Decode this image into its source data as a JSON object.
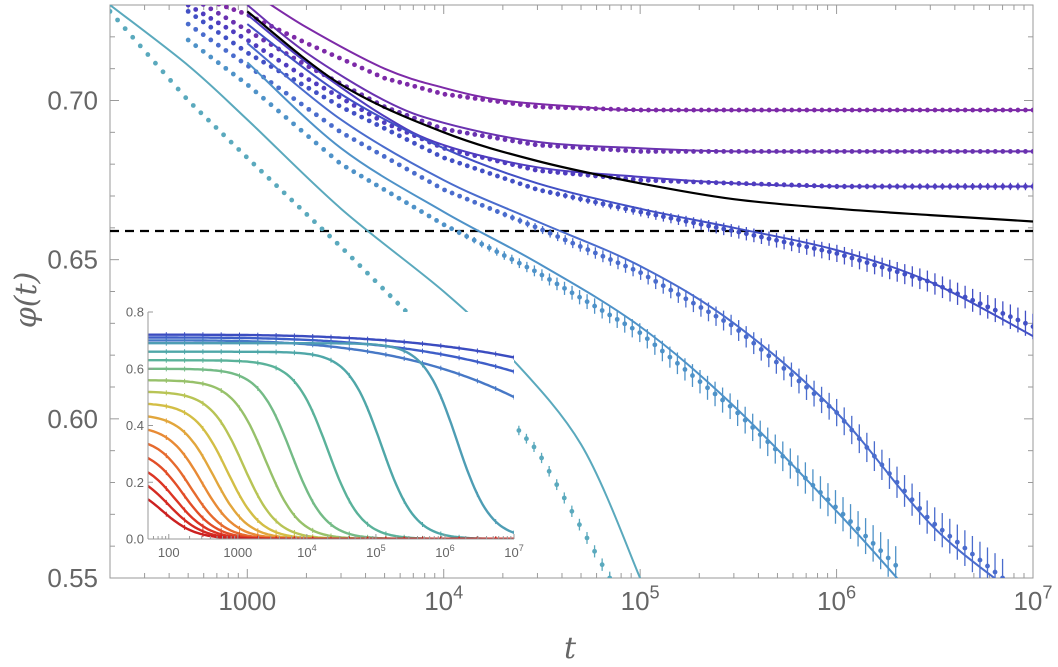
{
  "chart_data": {
    "main": {
      "type": "line",
      "xlabel": "t",
      "ylabel": "φ(t)",
      "x_scale": "log",
      "xlim": [
        200,
        10000000
      ],
      "ylim": [
        0.55,
        0.73
      ],
      "xticks": [
        {
          "value": 1000,
          "base": "1000",
          "exp": ""
        },
        {
          "value": 10000,
          "base": "10",
          "exp": "4"
        },
        {
          "value": 100000,
          "base": "10",
          "exp": "5"
        },
        {
          "value": 1000000,
          "base": "10",
          "exp": "6"
        },
        {
          "value": 10000000,
          "base": "10",
          "exp": "7"
        }
      ],
      "yticks": [
        {
          "value": 0.55,
          "label": "0.55"
        },
        {
          "value": 0.6,
          "label": "0.60"
        },
        {
          "value": 0.65,
          "label": "0.65"
        },
        {
          "value": 0.7,
          "label": "0.70"
        }
      ],
      "reference_line": {
        "y": 0.659,
        "style": "dashed",
        "color": "#000000"
      },
      "black_curve": {
        "color": "#000000",
        "x": [
          1000,
          3000,
          10000,
          30000,
          100000,
          300000,
          1000000,
          3000000,
          10000000
        ],
        "y": [
          0.728,
          0.705,
          0.69,
          0.681,
          0.674,
          0.669,
          0.666,
          0.664,
          0.662
        ]
      },
      "series": [
        {
          "name": "s1",
          "color": "#7d2aa8",
          "line": {
            "x": [
              1000,
              2000,
              5000,
              10000,
              20000,
              50000,
              100000,
              1000000,
              10000000
            ],
            "y": [
              0.735,
              0.723,
              0.71,
              0.704,
              0.7,
              0.698,
              0.697,
              0.697,
              0.697
            ]
          },
          "points": {
            "x": [
              600,
              1000,
              2000,
              5000,
              10000,
              30000,
              100000,
              1000000,
              10000000
            ],
            "y": [
              0.732,
              0.727,
              0.718,
              0.707,
              0.702,
              0.698,
              0.697,
              0.697,
              0.697
            ],
            "err": 0.0004
          }
        },
        {
          "name": "s2",
          "color": "#6a32b0",
          "line": {
            "x": [
              1000,
              2000,
              5000,
              10000,
              30000,
              100000,
              300000,
              1000000,
              10000000
            ],
            "y": [
              0.73,
              0.715,
              0.7,
              0.693,
              0.687,
              0.685,
              0.684,
              0.684,
              0.684
            ]
          },
          "points": {
            "x": [
              500,
              1000,
              2000,
              5000,
              10000,
              30000,
              100000,
              1000000,
              10000000
            ],
            "y": [
              0.733,
              0.722,
              0.711,
              0.698,
              0.691,
              0.686,
              0.684,
              0.684,
              0.684
            ],
            "err": 0.0006
          }
        },
        {
          "name": "s3",
          "color": "#4f3cbf",
          "line": {
            "x": [
              1000,
              2000,
              5000,
              10000,
              30000,
              100000,
              300000,
              1000000,
              10000000
            ],
            "y": [
              0.727,
              0.712,
              0.695,
              0.686,
              0.679,
              0.676,
              0.674,
              0.673,
              0.673
            ]
          },
          "points": {
            "x": [
              500,
              1000,
              2000,
              5000,
              10000,
              30000,
              100000,
              300000,
              1000000,
              10000000
            ],
            "y": [
              0.73,
              0.719,
              0.707,
              0.693,
              0.685,
              0.678,
              0.675,
              0.674,
              0.673,
              0.673
            ],
            "err": 0.0012
          }
        },
        {
          "name": "s4",
          "color": "#4250c5",
          "line": {
            "x": [
              1000,
              3000,
              10000,
              30000,
              100000,
              300000,
              1000000,
              3000000,
              10000000
            ],
            "y": [
              0.724,
              0.702,
              0.685,
              0.674,
              0.666,
              0.66,
              0.653,
              0.643,
              0.626
            ]
          },
          "points": {
            "x": [
              500,
              1000,
              3000,
              10000,
              30000,
              100000,
              300000,
              1000000,
              3000000,
              10000000
            ],
            "y": [
              0.728,
              0.715,
              0.698,
              0.682,
              0.672,
              0.665,
              0.659,
              0.652,
              0.643,
              0.629
            ],
            "err": 0.004
          }
        },
        {
          "name": "s5",
          "color": "#4a6ccd",
          "line": {
            "x": [
              1000,
              3000,
              10000,
              30000,
              100000,
              300000,
              1000000,
              3000000,
              7000000
            ],
            "y": [
              0.718,
              0.694,
              0.675,
              0.662,
              0.648,
              0.63,
              0.602,
              0.567,
              0.548
            ]
          },
          "points": {
            "x": [
              500,
              1000,
              3000,
              10000,
              30000,
              100000,
              300000,
              1000000,
              3000000,
              7000000
            ],
            "y": [
              0.724,
              0.711,
              0.69,
              0.672,
              0.66,
              0.646,
              0.629,
              0.602,
              0.568,
              0.55
            ],
            "err": 0.006
          }
        },
        {
          "name": "s6",
          "color": "#4e92c8",
          "line": {
            "x": [
              1000,
              3000,
              10000,
              30000,
              100000,
              300000,
              1000000,
              2100000
            ],
            "y": [
              0.712,
              0.685,
              0.665,
              0.649,
              0.629,
              0.604,
              0.571,
              0.549
            ]
          },
          "points": {
            "x": [
              500,
              1000,
              3000,
              10000,
              30000,
              100000,
              300000,
              1000000,
              2000000
            ],
            "y": [
              0.719,
              0.705,
              0.68,
              0.661,
              0.646,
              0.627,
              0.603,
              0.572,
              0.554
            ],
            "err": 0.006
          }
        },
        {
          "name": "s7",
          "color": "#5aa9bd",
          "line": {
            "x": [
              200,
              500,
              1000,
              3000,
              10000,
              20000,
              50000,
              100000
            ],
            "y": [
              0.73,
              0.711,
              0.694,
              0.666,
              0.64,
              0.622,
              0.592,
              0.55
            ]
          },
          "points": {
            "x": [
              200,
              500,
              1000,
              3000,
              10000,
              30000,
              70000
            ],
            "y": [
              0.728,
              0.7,
              0.682,
              0.654,
              0.622,
              0.59,
              0.55
            ],
            "err": 0.002
          }
        }
      ]
    },
    "inset": {
      "type": "line",
      "x_scale": "log",
      "xlim": [
        50,
        10000000
      ],
      "ylim": [
        0,
        0.8
      ],
      "xticks": [
        {
          "value": 100,
          "base": "100",
          "exp": ""
        },
        {
          "value": 1000,
          "base": "1000",
          "exp": ""
        },
        {
          "value": 10000,
          "base": "10",
          "exp": "4"
        },
        {
          "value": 100000,
          "base": "10",
          "exp": "5"
        },
        {
          "value": 1000000,
          "base": "10",
          "exp": "6"
        },
        {
          "value": 10000000,
          "base": "10",
          "exp": "7"
        }
      ],
      "yticks": [
        {
          "value": 0.0,
          "label": "0.0"
        },
        {
          "value": 0.2,
          "label": "0.2"
        },
        {
          "value": 0.4,
          "label": "0.4"
        },
        {
          "value": 0.6,
          "label": "0.6"
        },
        {
          "value": 0.8,
          "label": "0.8"
        }
      ],
      "series": [
        {
          "name": "i1",
          "color": "#3b4cc0",
          "y0": 0.72,
          "t_half": null,
          "y_end": 0.64
        },
        {
          "name": "i2",
          "color": "#3e5ec8",
          "y0": 0.71,
          "t_half": null,
          "y_end": 0.59
        },
        {
          "name": "i3",
          "color": "#4778c6",
          "y0": 0.7,
          "t_half": null,
          "y_end": 0.5
        },
        {
          "name": "i4",
          "color": "#4e9db4",
          "y0": 0.69,
          "t_half": 1500000,
          "y_end": 0.0
        },
        {
          "name": "i5",
          "color": "#4fa7a8",
          "y0": 0.66,
          "t_half": 120000,
          "y_end": 0.0
        },
        {
          "name": "i6",
          "color": "#5ab29a",
          "y0": 0.63,
          "t_half": 20000,
          "y_end": 0.0
        },
        {
          "name": "i7",
          "color": "#74bb86",
          "y0": 0.6,
          "t_half": 6000,
          "y_end": 0.0
        },
        {
          "name": "i8",
          "color": "#97c16a",
          "y0": 0.56,
          "t_half": 2500,
          "y_end": 0.0
        },
        {
          "name": "i9",
          "color": "#b8c455",
          "y0": 0.52,
          "t_half": 1200,
          "y_end": 0.0
        },
        {
          "name": "i10",
          "color": "#d3be45",
          "y0": 0.48,
          "t_half": 700,
          "y_end": 0.0
        },
        {
          "name": "i11",
          "color": "#e2a63c",
          "y0": 0.44,
          "t_half": 450,
          "y_end": 0.0
        },
        {
          "name": "i12",
          "color": "#e88a35",
          "y0": 0.4,
          "t_half": 300,
          "y_end": 0.0
        },
        {
          "name": "i13",
          "color": "#e66a2e",
          "y0": 0.36,
          "t_half": 210,
          "y_end": 0.0
        },
        {
          "name": "i14",
          "color": "#e24e28",
          "y0": 0.32,
          "t_half": 160,
          "y_end": 0.0
        },
        {
          "name": "i15",
          "color": "#dc3524",
          "y0": 0.28,
          "t_half": 125,
          "y_end": 0.0
        },
        {
          "name": "i16",
          "color": "#d42a22",
          "y0": 0.24,
          "t_half": 100,
          "y_end": 0.0
        },
        {
          "name": "i17",
          "color": "#cc2020",
          "y0": 0.2,
          "t_half": 80,
          "y_end": 0.0
        }
      ]
    }
  }
}
